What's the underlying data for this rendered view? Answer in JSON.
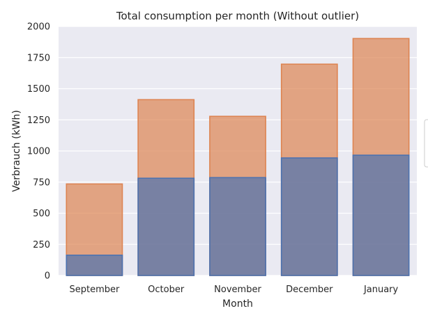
{
  "chart_data": {
    "type": "bar",
    "title": "Total consumption per month (Without outlier)",
    "xlabel": "Month",
    "ylabel": "Verbrauch (kWh)",
    "categories": [
      "September",
      "October",
      "November",
      "December",
      "January"
    ],
    "series": [
      {
        "values": [
          735,
          1412,
          1278,
          1697,
          1903
        ],
        "color": "#dd8452"
      },
      {
        "values": [
          163,
          781,
          786,
          944,
          966
        ],
        "color": "#4c72b0"
      }
    ],
    "ylim": [
      0,
      2000
    ],
    "yticks": [
      "0",
      "250",
      "500",
      "750",
      "1000",
      "1250",
      "1500",
      "1750",
      "2000"
    ],
    "grid": true,
    "background_color": "#eaeaf2",
    "legend": "right (clipped)"
  }
}
